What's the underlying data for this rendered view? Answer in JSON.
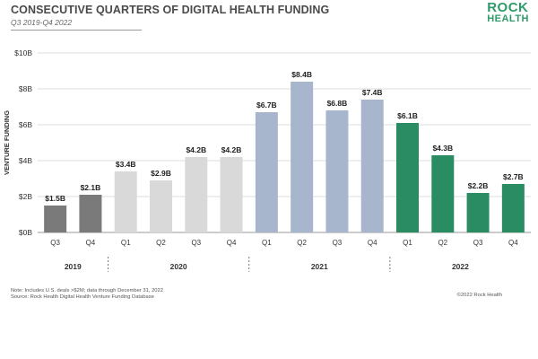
{
  "header": {
    "title": "CONSECUTIVE QUARTERS OF DIGITAL HEALTH FUNDING",
    "subtitle": "Q3 2019-Q4 2022"
  },
  "logo": {
    "line1": "ROCK",
    "line2": "HEALTH"
  },
  "footer": {
    "note": "Note: Includes U.S. deals >$2M; data through December 31, 2022",
    "source": "Source: Rock Health Digital Health Venture Funding Database",
    "copyright": "©2022 Rock Health"
  },
  "colors": {
    "2019": "#7a7a7a",
    "2020": "#d9d9d9",
    "2021": "#a7b6cd",
    "2022": "#2a8c63",
    "grid": "#dddddd",
    "axis": "#999999"
  },
  "chart_data": {
    "type": "bar",
    "ylabel": "VENTURE FUNDING",
    "ylim": [
      0,
      10
    ],
    "yticks": [
      "$0B",
      "$2B",
      "$4B",
      "$6B",
      "$8B",
      "$10B"
    ],
    "grid": true,
    "groups": [
      {
        "year": "2019",
        "quarters": [
          "Q3",
          "Q4"
        ]
      },
      {
        "year": "2020",
        "quarters": [
          "Q1",
          "Q2",
          "Q3",
          "Q4"
        ]
      },
      {
        "year": "2021",
        "quarters": [
          "Q1",
          "Q2",
          "Q3",
          "Q4"
        ]
      },
      {
        "year": "2022",
        "quarters": [
          "Q1",
          "Q2",
          "Q3",
          "Q4"
        ]
      }
    ],
    "bars": [
      {
        "year": "2019",
        "quarter": "Q3",
        "value": 1.5,
        "label": "$1.5B"
      },
      {
        "year": "2019",
        "quarter": "Q4",
        "value": 2.1,
        "label": "$2.1B"
      },
      {
        "year": "2020",
        "quarter": "Q1",
        "value": 3.4,
        "label": "$3.4B"
      },
      {
        "year": "2020",
        "quarter": "Q2",
        "value": 2.9,
        "label": "$2.9B"
      },
      {
        "year": "2020",
        "quarter": "Q3",
        "value": 4.2,
        "label": "$4.2B"
      },
      {
        "year": "2020",
        "quarter": "Q4",
        "value": 4.2,
        "label": "$4.2B"
      },
      {
        "year": "2021",
        "quarter": "Q1",
        "value": 6.7,
        "label": "$6.7B"
      },
      {
        "year": "2021",
        "quarter": "Q2",
        "value": 8.4,
        "label": "$8.4B"
      },
      {
        "year": "2021",
        "quarter": "Q3",
        "value": 6.8,
        "label": "$6.8B"
      },
      {
        "year": "2021",
        "quarter": "Q4",
        "value": 7.4,
        "label": "$7.4B"
      },
      {
        "year": "2022",
        "quarter": "Q1",
        "value": 6.1,
        "label": "$6.1B"
      },
      {
        "year": "2022",
        "quarter": "Q2",
        "value": 4.3,
        "label": "$4.3B"
      },
      {
        "year": "2022",
        "quarter": "Q3",
        "value": 2.2,
        "label": "$2.2B"
      },
      {
        "year": "2022",
        "quarter": "Q4",
        "value": 2.7,
        "label": "$2.7B"
      }
    ]
  }
}
